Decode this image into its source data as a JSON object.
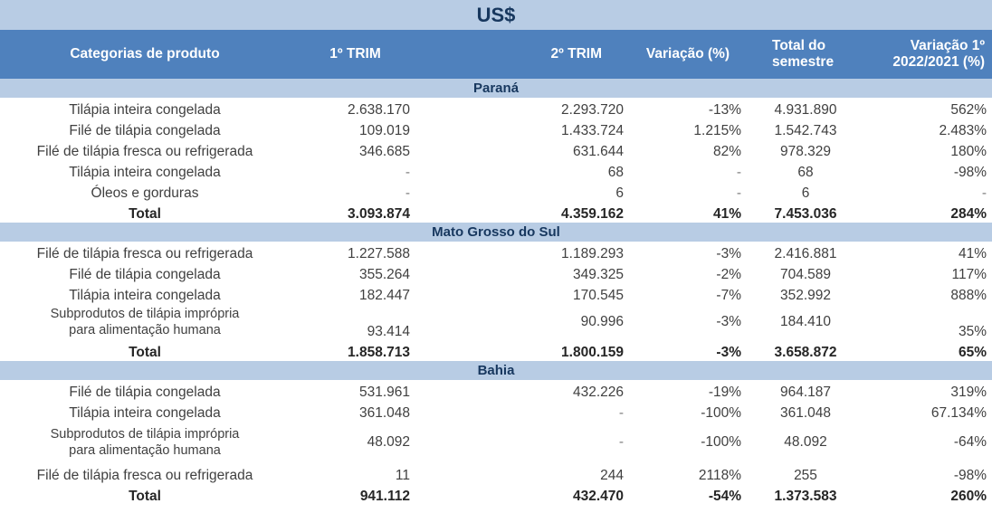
{
  "title": "US$",
  "headers": {
    "categoria": "Categorias de produto",
    "trim1": "1º TRIM",
    "trim2": "2º TRIM",
    "variacao": "Variação (%)",
    "total_semestre_l1": "Total do",
    "total_semestre_l2": "semestre",
    "variacao_ano_l1": "Variação 1º",
    "variacao_ano_l2": "2022/2021 (%)"
  },
  "sections": [
    {
      "name": "Paraná",
      "rows": [
        {
          "cat": "Tilápia inteira congelada",
          "t1": "2.638.170",
          "t2": "2.293.720",
          "var": "-13%",
          "sem": "4.931.890",
          "va": "562%"
        },
        {
          "cat": "Filé de tilápia congelada",
          "t1": "109.019",
          "t2": "1.433.724",
          "var": "1.215%",
          "sem": "1.542.743",
          "va": "2.483%"
        },
        {
          "cat": "Filé de tilápia fresca ou refrigerada",
          "t1": "346.685",
          "t2": "631.644",
          "var": "82%",
          "sem": "978.329",
          "va": "180%"
        },
        {
          "cat": "Tilápia inteira congelada",
          "t1": "-",
          "t2": "68",
          "var": "-",
          "sem": "68",
          "va": "-98%"
        },
        {
          "cat": "Óleos e gorduras",
          "t1": "-",
          "t2": "6",
          "var": "-",
          "sem": "6",
          "va": "-"
        }
      ],
      "total": {
        "label": "Total",
        "t1": "3.093.874",
        "t2": "4.359.162",
        "var": "41%",
        "sem": "7.453.036",
        "va": "284%"
      }
    },
    {
      "name": "Mato Grosso do Sul",
      "rows": [
        {
          "cat": "Filé de tilápia fresca ou refrigerada",
          "t1": "1.227.588",
          "t2": "1.189.293",
          "var": "-3%",
          "sem": "2.416.881",
          "va": "41%"
        },
        {
          "cat": "Filé de tilápia congelada",
          "t1": "355.264",
          "t2": "349.325",
          "var": "-2%",
          "sem": "704.589",
          "va": "117%"
        },
        {
          "cat": "Tilápia inteira congelada",
          "t1": "182.447",
          "t2": "170.545",
          "var": "-7%",
          "sem": "352.992",
          "va": "888%"
        },
        {
          "cat_l1": "Subprodutos de tilápia imprópria",
          "cat_l2": "para alimentação humana",
          "t1": "93.414",
          "t2": "90.996",
          "var": "-3%",
          "sem": "184.410",
          "va": "35%"
        }
      ],
      "total": {
        "label": "Total",
        "t1": "1.858.713",
        "t2": "1.800.159",
        "var": "-3%",
        "sem": "3.658.872",
        "va": "65%"
      }
    },
    {
      "name": "Bahia",
      "rows": [
        {
          "cat": "Filé de tilápia congelada",
          "t1": "531.961",
          "t2": "432.226",
          "var": "-19%",
          "sem": "964.187",
          "va": "319%"
        },
        {
          "cat": "Tilápia inteira congelada",
          "t1": "361.048",
          "t2": "-",
          "var": "-100%",
          "sem": "361.048",
          "va": "67.134%"
        },
        {
          "cat_l1": "Subprodutos de tilápia imprópria",
          "cat_l2": "para alimentação humana",
          "t1": "48.092",
          "t2": "-",
          "var": "-100%",
          "sem": "48.092",
          "va": "-64%"
        },
        {
          "cat": "Filé de tilápia fresca ou refrigerada",
          "t1": "11",
          "t2": "244",
          "var": "2118%",
          "sem": "255",
          "va": "-98%"
        }
      ],
      "total": {
        "label": "Total",
        "t1": "941.112",
        "t2": "432.470",
        "var": "-54%",
        "sem": "1.373.583",
        "va": "260%"
      }
    }
  ]
}
